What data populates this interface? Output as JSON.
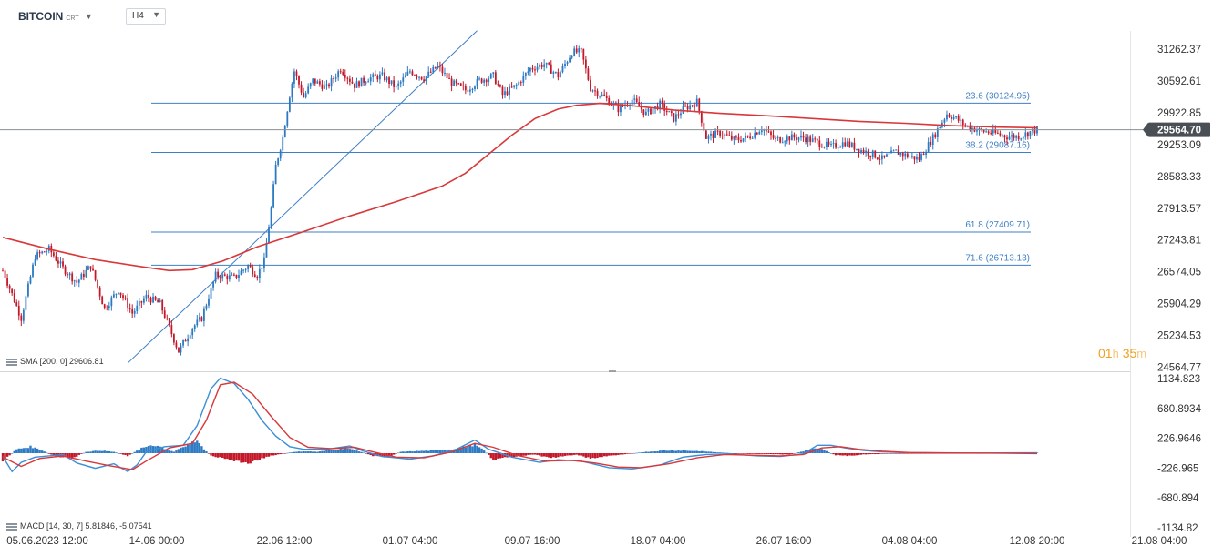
{
  "header": {
    "symbol": "BITCOIN",
    "symbol_suffix": "CRT",
    "timeframe": "H4"
  },
  "countdown": {
    "hours": "01",
    "hours_unit": "h",
    "minutes": "35",
    "minutes_unit": "m"
  },
  "colors": {
    "bull_candle": "#2b79c2",
    "bear_candle": "#c4182a",
    "sma": "#d9383a",
    "fib_line": "#3d7fc6",
    "macd_line": "#3a8fd6",
    "signal_line": "#d9383a",
    "hist_pos": "#2e7bc4",
    "hist_neg": "#c4182a",
    "price_tag_bg": "#4a4f56"
  },
  "indicators": {
    "sma_label": "SMA [200, 0] 29606.81",
    "macd_label": "MACD [14, 30, 7] 5.81846, -5.07541"
  },
  "chart_data": [
    {
      "type": "candlestick",
      "title": "BITCOIN",
      "timeframe": "H4",
      "x_ticks": [
        "05.06.2023 12:00",
        "14.06 00:00",
        "22.06 12:00",
        "01.07 04:00",
        "09.07 16:00",
        "18.07 04:00",
        "26.07 16:00",
        "04.08 04:00",
        "12.08 20:00",
        "21.08 04:00"
      ],
      "y_ticks": [
        "31262.37",
        "30592.61",
        "29922.85",
        "29253.09",
        "28583.33",
        "27913.57",
        "27243.81",
        "26574.05",
        "25904.29",
        "25234.53",
        "24564.77"
      ],
      "ylim": [
        24564.77,
        31700
      ],
      "last_price": "29564.70",
      "close_path": [
        [
          0,
          26600
        ],
        [
          8,
          25600
        ],
        [
          14,
          26900
        ],
        [
          20,
          27050
        ],
        [
          26,
          26650
        ],
        [
          32,
          26350
        ],
        [
          38,
          26700
        ],
        [
          44,
          25800
        ],
        [
          50,
          26200
        ],
        [
          56,
          25700
        ],
        [
          62,
          26050
        ],
        [
          68,
          25900
        ],
        [
          76,
          24900
        ],
        [
          82,
          25400
        ],
        [
          86,
          25600
        ],
        [
          92,
          26500
        ],
        [
          100,
          26450
        ],
        [
          106,
          26700
        ],
        [
          110,
          26500
        ],
        [
          113,
          26800
        ],
        [
          116,
          27900
        ],
        [
          118,
          28800
        ],
        [
          121,
          29400
        ],
        [
          124,
          30300
        ],
        [
          126,
          30800
        ],
        [
          130,
          30250
        ],
        [
          134,
          30600
        ],
        [
          140,
          30450
        ],
        [
          146,
          30850
        ],
        [
          152,
          30500
        ],
        [
          158,
          30650
        ],
        [
          164,
          30700
        ],
        [
          170,
          30450
        ],
        [
          176,
          30800
        ],
        [
          182,
          30650
        ],
        [
          188,
          30900
        ],
        [
          194,
          30550
        ],
        [
          200,
          30400
        ],
        [
          206,
          30600
        ],
        [
          212,
          30700
        ],
        [
          216,
          30300
        ],
        [
          222,
          30500
        ],
        [
          228,
          30850
        ],
        [
          234,
          30950
        ],
        [
          240,
          30700
        ],
        [
          246,
          31200
        ],
        [
          250,
          31200
        ],
        [
          254,
          30450
        ],
        [
          260,
          30250
        ],
        [
          266,
          30000
        ],
        [
          272,
          30200
        ],
        [
          278,
          29900
        ],
        [
          284,
          30100
        ],
        [
          290,
          29800
        ],
        [
          294,
          30000
        ],
        [
          300,
          30150
        ],
        [
          304,
          29400
        ],
        [
          310,
          29500
        ],
        [
          316,
          29350
        ],
        [
          322,
          29400
        ],
        [
          328,
          29600
        ],
        [
          334,
          29350
        ],
        [
          340,
          29400
        ],
        [
          346,
          29400
        ],
        [
          352,
          29300
        ],
        [
          358,
          29200
        ],
        [
          364,
          29300
        ],
        [
          370,
          29150
        ],
        [
          376,
          29050
        ],
        [
          380,
          28950
        ],
        [
          386,
          29100
        ],
        [
          392,
          29000
        ],
        [
          396,
          28950
        ],
        [
          402,
          29400
        ],
        [
          408,
          29900
        ],
        [
          412,
          29800
        ],
        [
          416,
          29650
        ],
        [
          422,
          29550
        ],
        [
          428,
          29500
        ],
        [
          434,
          29420
        ],
        [
          440,
          29430
        ],
        [
          444,
          29520
        ],
        [
          447,
          29565
        ]
      ],
      "x_count": 448
    },
    {
      "type": "line",
      "title": "SMA",
      "params": [
        200,
        0
      ],
      "value": 29606.81,
      "points": [
        [
          0,
          27300
        ],
        [
          20,
          27050
        ],
        [
          40,
          26830
        ],
        [
          60,
          26680
        ],
        [
          72,
          26600
        ],
        [
          82,
          26620
        ],
        [
          95,
          26800
        ],
        [
          110,
          27100
        ],
        [
          130,
          27420
        ],
        [
          150,
          27750
        ],
        [
          170,
          28050
        ],
        [
          190,
          28380
        ],
        [
          200,
          28650
        ],
        [
          210,
          29050
        ],
        [
          220,
          29450
        ],
        [
          230,
          29800
        ],
        [
          240,
          30000
        ],
        [
          248,
          30080
        ],
        [
          258,
          30120
        ],
        [
          270,
          30080
        ],
        [
          290,
          29980
        ],
        [
          310,
          29910
        ],
        [
          330,
          29860
        ],
        [
          350,
          29800
        ],
        [
          370,
          29740
        ],
        [
          390,
          29700
        ],
        [
          410,
          29650
        ],
        [
          430,
          29620
        ],
        [
          447,
          29607
        ]
      ]
    },
    {
      "type": "fibonacci",
      "levels": [
        {
          "ratio": "23.6",
          "price": 30124.95
        },
        {
          "ratio": "38.2",
          "price": 29087.16
        },
        {
          "ratio": "61.8",
          "price": 27409.71
        },
        {
          "ratio": "71.6",
          "price": 26713.13
        }
      ],
      "labels": [
        "23.6 (30124.95)",
        "38.2 (29087.16)",
        "61.8 (27409.71)",
        "71.6 (26713.13)"
      ],
      "trendline": {
        "from": [
          54,
          24650
        ],
        "to": [
          205,
          31650
        ]
      }
    },
    {
      "type": "macd",
      "params": [
        14,
        30,
        7
      ],
      "values": [
        5.81846,
        -5.07541
      ],
      "y_ticks": [
        "1134.823",
        "680.8934",
        "226.9646",
        "-226.965",
        "-680.894",
        "-1134.82"
      ],
      "ylim": [
        -1134.82,
        1134.823
      ],
      "macd_path": [
        [
          0,
          -50
        ],
        [
          4,
          -280
        ],
        [
          8,
          -140
        ],
        [
          14,
          -60
        ],
        [
          20,
          -40
        ],
        [
          26,
          -20
        ],
        [
          32,
          -150
        ],
        [
          40,
          -230
        ],
        [
          48,
          -160
        ],
        [
          54,
          -280
        ],
        [
          58,
          -180
        ],
        [
          62,
          20
        ],
        [
          70,
          100
        ],
        [
          78,
          120
        ],
        [
          84,
          420
        ],
        [
          90,
          980
        ],
        [
          94,
          1140
        ],
        [
          100,
          1060
        ],
        [
          106,
          820
        ],
        [
          112,
          500
        ],
        [
          118,
          260
        ],
        [
          124,
          100
        ],
        [
          130,
          60
        ],
        [
          140,
          60
        ],
        [
          150,
          110
        ],
        [
          156,
          30
        ],
        [
          164,
          -50
        ],
        [
          176,
          -90
        ],
        [
          186,
          -40
        ],
        [
          196,
          60
        ],
        [
          204,
          200
        ],
        [
          210,
          60
        ],
        [
          220,
          -60
        ],
        [
          232,
          -140
        ],
        [
          240,
          -100
        ],
        [
          250,
          -120
        ],
        [
          262,
          -220
        ],
        [
          272,
          -240
        ],
        [
          284,
          -180
        ],
        [
          294,
          -60
        ],
        [
          304,
          -20
        ],
        [
          314,
          -10
        ],
        [
          326,
          -40
        ],
        [
          336,
          -50
        ],
        [
          346,
          -10
        ],
        [
          352,
          120
        ],
        [
          358,
          120
        ],
        [
          364,
          80
        ],
        [
          372,
          40
        ],
        [
          380,
          20
        ],
        [
          388,
          10
        ],
        [
          400,
          5
        ],
        [
          410,
          3
        ],
        [
          420,
          3
        ],
        [
          430,
          4
        ],
        [
          440,
          5
        ],
        [
          447,
          5.8
        ]
      ],
      "signal_path": [
        [
          0,
          -60
        ],
        [
          8,
          -200
        ],
        [
          16,
          -80
        ],
        [
          26,
          -40
        ],
        [
          36,
          -120
        ],
        [
          46,
          -190
        ],
        [
          56,
          -250
        ],
        [
          62,
          -120
        ],
        [
          72,
          80
        ],
        [
          82,
          150
        ],
        [
          88,
          500
        ],
        [
          94,
          1040
        ],
        [
          100,
          1080
        ],
        [
          108,
          900
        ],
        [
          116,
          560
        ],
        [
          124,
          240
        ],
        [
          132,
          90
        ],
        [
          142,
          70
        ],
        [
          152,
          90
        ],
        [
          160,
          20
        ],
        [
          170,
          -60
        ],
        [
          182,
          -70
        ],
        [
          194,
          20
        ],
        [
          204,
          150
        ],
        [
          212,
          90
        ],
        [
          222,
          -30
        ],
        [
          234,
          -120
        ],
        [
          246,
          -110
        ],
        [
          256,
          -150
        ],
        [
          266,
          -210
        ],
        [
          276,
          -220
        ],
        [
          288,
          -160
        ],
        [
          300,
          -70
        ],
        [
          312,
          -20
        ],
        [
          324,
          -30
        ],
        [
          336,
          -40
        ],
        [
          346,
          -20
        ],
        [
          354,
          80
        ],
        [
          362,
          100
        ],
        [
          370,
          60
        ],
        [
          380,
          30
        ],
        [
          392,
          10
        ],
        [
          404,
          5
        ],
        [
          420,
          3
        ],
        [
          434,
          -2
        ],
        [
          447,
          -5.08
        ]
      ],
      "histogram_path": [
        [
          0,
          -120
        ],
        [
          6,
          60
        ],
        [
          12,
          100
        ],
        [
          16,
          60
        ],
        [
          20,
          -10
        ],
        [
          24,
          -60
        ],
        [
          30,
          -80
        ],
        [
          36,
          20
        ],
        [
          42,
          40
        ],
        [
          48,
          20
        ],
        [
          54,
          -40
        ],
        [
          60,
          80
        ],
        [
          66,
          120
        ],
        [
          70,
          60
        ],
        [
          74,
          20
        ],
        [
          80,
          140
        ],
        [
          84,
          180
        ],
        [
          86,
          100
        ],
        [
          90,
          -40
        ],
        [
          96,
          -80
        ],
        [
          102,
          -130
        ],
        [
          106,
          -150
        ],
        [
          110,
          -100
        ],
        [
          116,
          -40
        ],
        [
          124,
          10
        ],
        [
          130,
          30
        ],
        [
          136,
          20
        ],
        [
          142,
          50
        ],
        [
          148,
          80
        ],
        [
          154,
          30
        ],
        [
          160,
          -40
        ],
        [
          166,
          -60
        ],
        [
          172,
          20
        ],
        [
          178,
          30
        ],
        [
          186,
          40
        ],
        [
          194,
          60
        ],
        [
          200,
          100
        ],
        [
          204,
          130
        ],
        [
          208,
          40
        ],
        [
          212,
          -100
        ],
        [
          218,
          -60
        ],
        [
          224,
          -40
        ],
        [
          230,
          -20
        ],
        [
          236,
          -70
        ],
        [
          242,
          -50
        ],
        [
          248,
          -20
        ],
        [
          254,
          -80
        ],
        [
          262,
          -40
        ],
        [
          270,
          -10
        ],
        [
          278,
          20
        ],
        [
          286,
          40
        ],
        [
          294,
          40
        ],
        [
          302,
          30
        ],
        [
          310,
          10
        ],
        [
          320,
          -10
        ],
        [
          332,
          -15
        ],
        [
          340,
          -20
        ],
        [
          346,
          30
        ],
        [
          350,
          70
        ],
        [
          354,
          60
        ],
        [
          360,
          -30
        ],
        [
          366,
          -40
        ],
        [
          372,
          -20
        ],
        [
          380,
          -10
        ],
        [
          392,
          -5
        ],
        [
          404,
          -3
        ],
        [
          420,
          -2
        ],
        [
          434,
          5
        ],
        [
          447,
          8
        ]
      ]
    }
  ]
}
